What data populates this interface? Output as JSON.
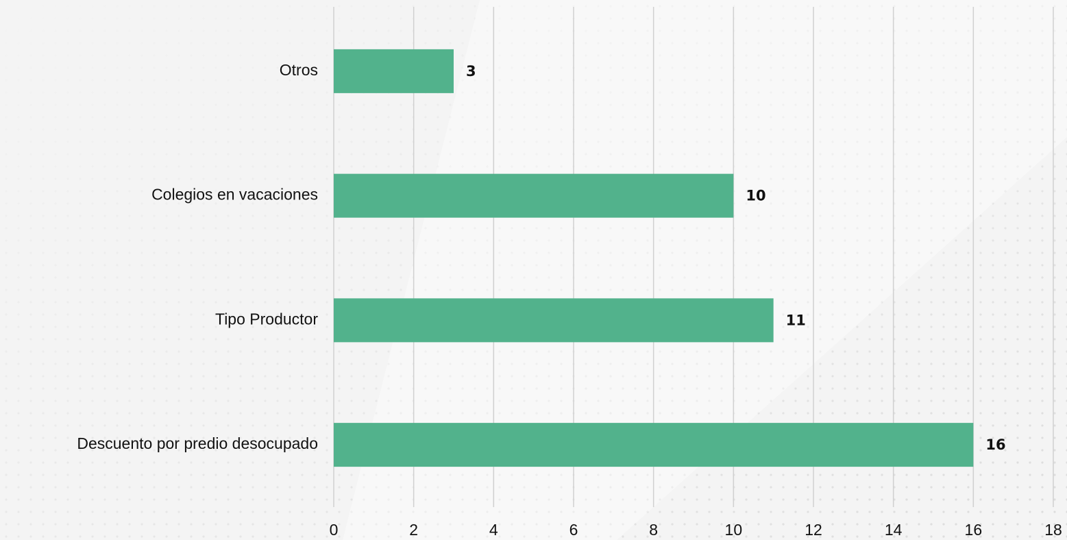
{
  "chart_data": {
    "type": "bar",
    "orientation": "horizontal",
    "categories": [
      "Otros",
      "Colegios en vacaciones",
      "Tipo Productor",
      "Descuento por predio desocupado"
    ],
    "values": [
      3,
      10,
      11,
      16
    ],
    "color": "#52b28c",
    "xlim": [
      0,
      18
    ],
    "xticks": [
      0,
      2,
      4,
      6,
      8,
      10,
      12,
      14,
      16,
      18
    ],
    "grid": true
  }
}
